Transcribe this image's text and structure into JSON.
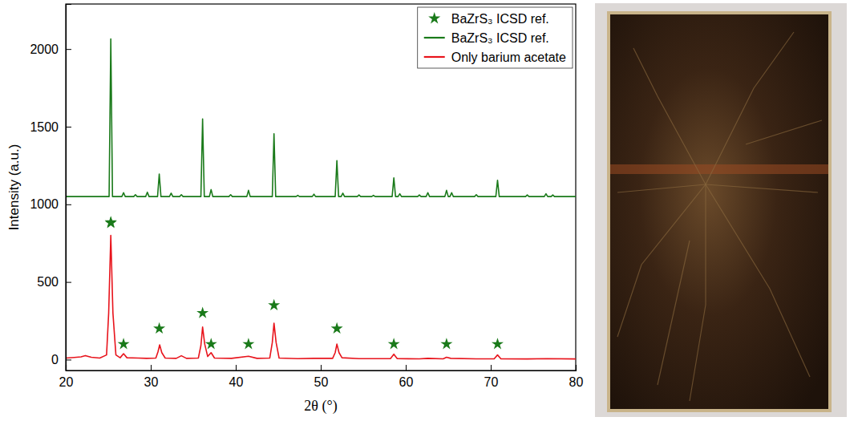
{
  "chart_data": {
    "type": "line",
    "xlabel": "2θ (°)",
    "ylabel": "Intensity (a.u.)",
    "xlim": [
      20,
      80
    ],
    "xticks": [
      20,
      30,
      40,
      50,
      60,
      70,
      80
    ],
    "ylim": [
      -70,
      2290
    ],
    "yticks": [
      0,
      500,
      1000,
      1500,
      2000
    ],
    "legend": "upper right",
    "series": [
      {
        "name": "BaZrS₃ ICSD ref.",
        "type": "scatter",
        "marker": "star",
        "color": "#1a7a1a",
        "x": [
          25.3,
          25.3,
          26.8,
          31.0,
          36.1,
          37.1,
          41.5,
          44.5,
          51.9,
          58.6,
          64.8,
          70.8
        ],
        "values": [
          880,
          885,
          100,
          200,
          300,
          100,
          100,
          350,
          200,
          100,
          100,
          100
        ]
      },
      {
        "name": "BaZrS₃ ICSD ref.",
        "type": "line",
        "color": "#1a7a1a",
        "x": [
          20,
          25.1,
          25.3,
          25.5,
          26.6,
          26.8,
          27.0,
          28.0,
          28.2,
          28.4,
          29.4,
          29.6,
          29.8,
          30.8,
          31.0,
          31.2,
          32.2,
          32.4,
          32.6,
          33.4,
          33.6,
          33.8,
          35.9,
          36.1,
          36.3,
          36.9,
          37.1,
          37.3,
          39.2,
          39.4,
          39.6,
          41.3,
          41.5,
          41.7,
          44.3,
          44.5,
          44.7,
          47.1,
          47.3,
          47.5,
          49.0,
          49.2,
          49.4,
          51.7,
          51.9,
          52.1,
          52.4,
          52.6,
          52.8,
          54.3,
          54.5,
          54.7,
          56.0,
          56.2,
          56.4,
          58.4,
          58.6,
          58.8,
          59.1,
          59.3,
          59.5,
          61.4,
          61.6,
          61.8,
          62.4,
          62.6,
          62.8,
          64.6,
          64.8,
          65.0,
          65.2,
          65.4,
          65.6,
          68.1,
          68.3,
          68.5,
          70.6,
          70.8,
          71.0,
          74.1,
          74.3,
          74.5,
          76.3,
          76.5,
          76.7,
          77.1,
          77.3,
          77.5,
          80
        ],
        "values": [
          1050,
          1050,
          2065,
          1050,
          1050,
          1075,
          1050,
          1050,
          1062,
          1050,
          1050,
          1078,
          1050,
          1050,
          1195,
          1050,
          1050,
          1072,
          1050,
          1050,
          1062,
          1050,
          1050,
          1550,
          1050,
          1050,
          1095,
          1050,
          1050,
          1062,
          1050,
          1050,
          1090,
          1050,
          1050,
          1455,
          1050,
          1050,
          1058,
          1050,
          1050,
          1065,
          1050,
          1050,
          1282,
          1050,
          1050,
          1072,
          1050,
          1050,
          1060,
          1050,
          1050,
          1058,
          1050,
          1050,
          1170,
          1050,
          1050,
          1068,
          1050,
          1050,
          1060,
          1050,
          1050,
          1075,
          1050,
          1050,
          1090,
          1050,
          1050,
          1075,
          1050,
          1050,
          1062,
          1050,
          1050,
          1155,
          1050,
          1050,
          1060,
          1050,
          1050,
          1068,
          1050,
          1050,
          1060,
          1050,
          1050
        ]
      },
      {
        "name": "Only barium acetate",
        "type": "line",
        "color": "#e8141c",
        "x": [
          20,
          21.0,
          21.8,
          22.3,
          23.0,
          24.0,
          24.8,
          25.05,
          25.3,
          25.55,
          25.9,
          26.4,
          26.8,
          27.2,
          28.5,
          29.5,
          30.6,
          30.85,
          31.05,
          31.3,
          31.7,
          33.0,
          33.6,
          34.2,
          35.6,
          35.9,
          36.1,
          36.35,
          36.7,
          37.1,
          37.5,
          39.5,
          41.5,
          42.5,
          44.0,
          44.3,
          44.5,
          44.75,
          45.1,
          47.3,
          49.2,
          51.4,
          51.7,
          51.9,
          52.15,
          52.5,
          54.5,
          56.2,
          58.2,
          58.6,
          59.0,
          61.6,
          62.6,
          64.4,
          64.8,
          65.3,
          68.3,
          70.4,
          70.8,
          71.2,
          74.3,
          76.6,
          80
        ],
        "values": [
          10,
          14,
          18,
          26,
          15,
          10,
          30,
          300,
          800,
          300,
          30,
          12,
          38,
          12,
          10,
          8,
          10,
          50,
          95,
          45,
          10,
          8,
          25,
          8,
          10,
          90,
          210,
          100,
          20,
          45,
          10,
          8,
          22,
          8,
          10,
          110,
          235,
          110,
          10,
          6,
          8,
          8,
          45,
          100,
          45,
          12,
          6,
          6,
          6,
          35,
          6,
          5,
          8,
          5,
          15,
          8,
          5,
          5,
          30,
          5,
          4,
          6,
          4
        ]
      }
    ]
  }
}
